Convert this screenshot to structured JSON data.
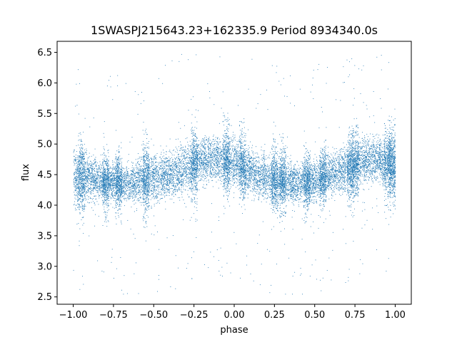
{
  "chart_data": {
    "type": "scatter",
    "title": "1SWASPJ215643.23+162335.9 Period 8934340.0s",
    "xlabel": "phase",
    "ylabel": "flux",
    "xlim": [
      -1.1,
      1.1
    ],
    "ylim": [
      2.38,
      6.68
    ],
    "xticks": [
      -1.0,
      -0.75,
      -0.5,
      -0.25,
      0.0,
      0.25,
      0.5,
      0.75,
      1.0
    ],
    "xtick_labels": [
      "−1.00",
      "−0.75",
      "−0.50",
      "−0.25",
      "0.00",
      "0.25",
      "0.50",
      "0.75",
      "1.00"
    ],
    "yticks": [
      2.5,
      3.0,
      3.5,
      4.0,
      4.5,
      5.0,
      5.5,
      6.0,
      6.5
    ],
    "ytick_labels": [
      "2.5",
      "3.0",
      "3.5",
      "4.0",
      "4.5",
      "5.0",
      "5.5",
      "6.0",
      "6.5"
    ],
    "grid": false,
    "legend": "none",
    "marker_color": "#1f77b4",
    "phase_range": [
      -1.0,
      1.0
    ],
    "flux_range": [
      2.55,
      6.55
    ],
    "profile": [
      {
        "phase": -1.0,
        "median": 4.45,
        "spread": 0.45
      },
      {
        "phase": -0.9,
        "median": 4.45,
        "spread": 0.35
      },
      {
        "phase": -0.8,
        "median": 4.4,
        "spread": 0.3
      },
      {
        "phase": -0.7,
        "median": 4.35,
        "spread": 0.3
      },
      {
        "phase": -0.6,
        "median": 4.4,
        "spread": 0.35
      },
      {
        "phase": -0.5,
        "median": 4.45,
        "spread": 0.4
      },
      {
        "phase": -0.4,
        "median": 4.5,
        "spread": 0.35
      },
      {
        "phase": -0.3,
        "median": 4.6,
        "spread": 0.4
      },
      {
        "phase": -0.2,
        "median": 4.75,
        "spread": 0.35
      },
      {
        "phase": -0.1,
        "median": 4.75,
        "spread": 0.35
      },
      {
        "phase": 0.0,
        "median": 4.7,
        "spread": 0.4
      },
      {
        "phase": 0.1,
        "median": 4.55,
        "spread": 0.35
      },
      {
        "phase": 0.2,
        "median": 4.45,
        "spread": 0.35
      },
      {
        "phase": 0.3,
        "median": 4.4,
        "spread": 0.35
      },
      {
        "phase": 0.4,
        "median": 4.35,
        "spread": 0.3
      },
      {
        "phase": 0.5,
        "median": 4.4,
        "spread": 0.3
      },
      {
        "phase": 0.6,
        "median": 4.5,
        "spread": 0.3
      },
      {
        "phase": 0.7,
        "median": 4.6,
        "spread": 0.35
      },
      {
        "phase": 0.8,
        "median": 4.75,
        "spread": 0.35
      },
      {
        "phase": 0.9,
        "median": 4.75,
        "spread": 0.35
      },
      {
        "phase": 1.0,
        "median": 4.65,
        "spread": 0.4
      }
    ],
    "dense_streaks": [
      -0.95,
      -0.8,
      -0.72,
      -0.55,
      -0.25,
      -0.05,
      0.05,
      0.25,
      0.3,
      0.45,
      0.55,
      0.72,
      0.75,
      0.95,
      0.98
    ]
  }
}
